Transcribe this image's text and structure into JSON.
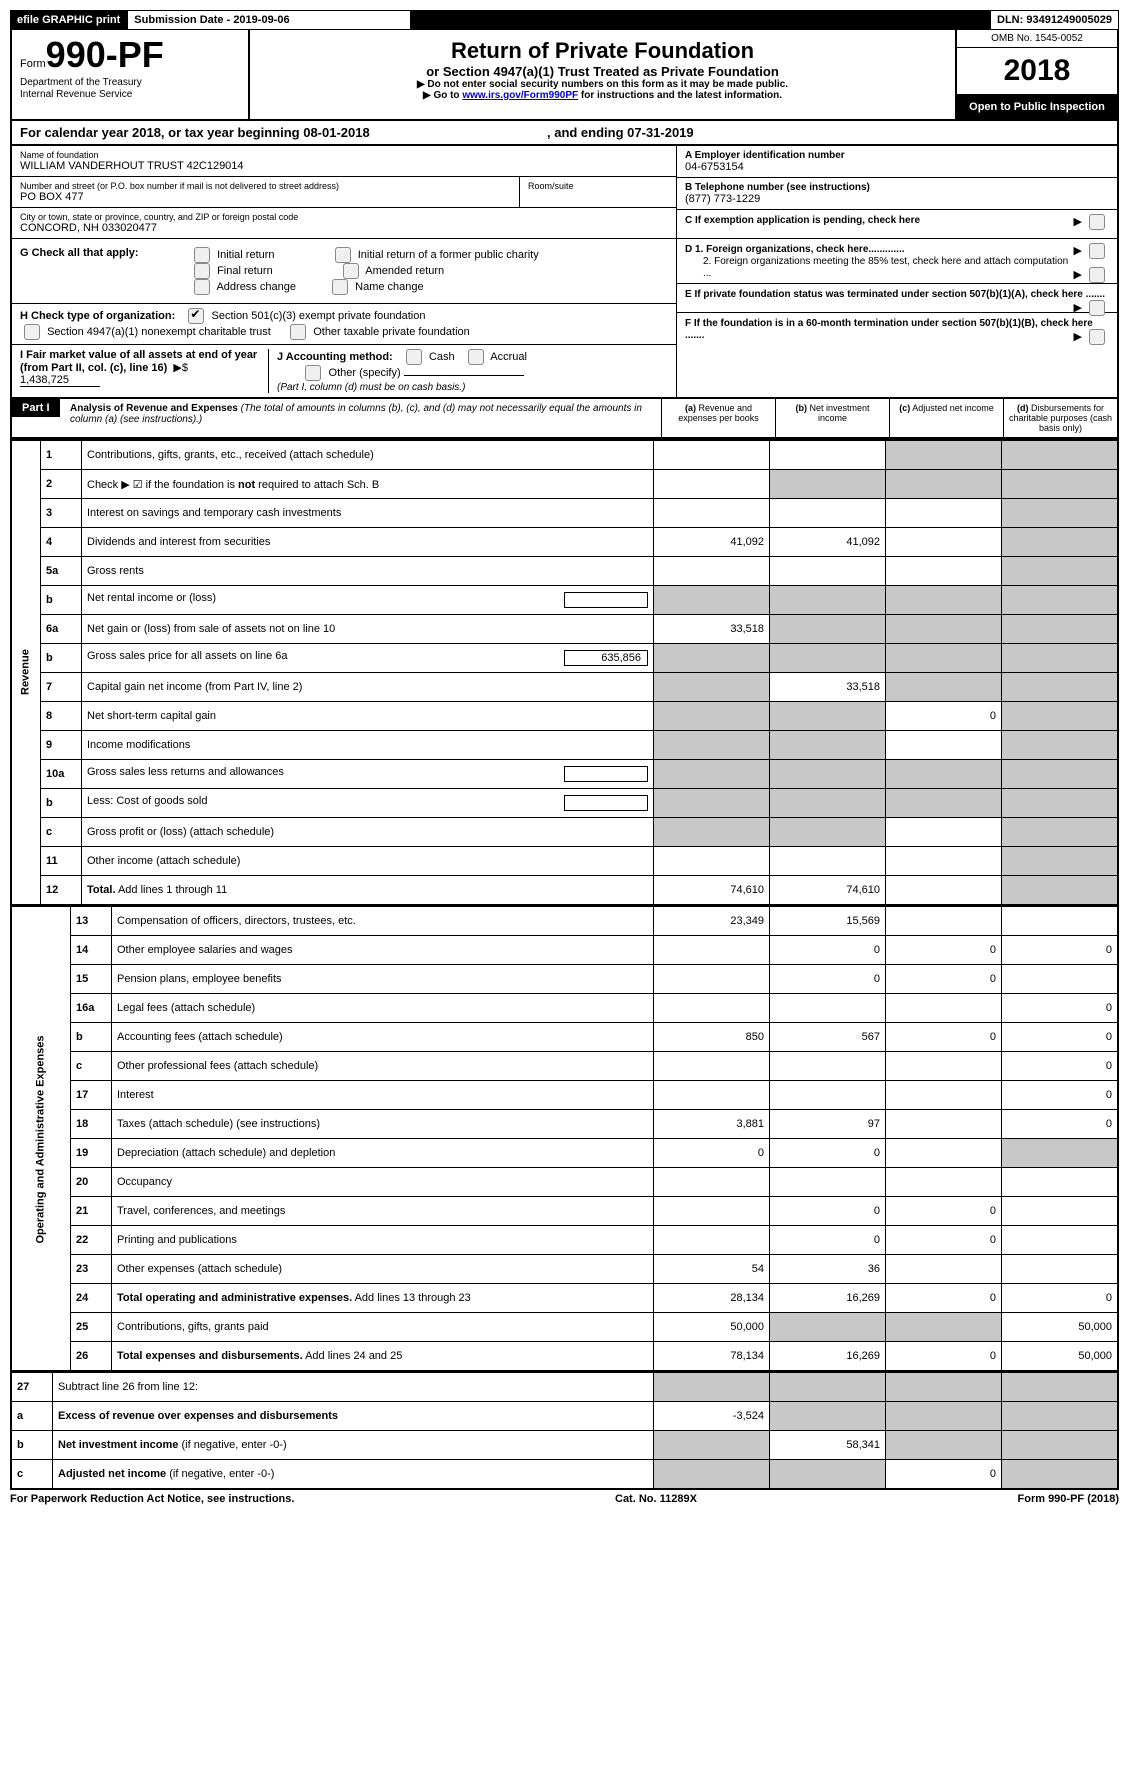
{
  "header": {
    "efile": "efile GRAPHIC print",
    "submission_label": "Submission Date - 2019-09-06",
    "dln": "DLN: 93491249005029",
    "omb": "OMB No. 1545-0052",
    "form_prefix": "Form",
    "form_number": "990-PF",
    "dept": "Department of the Treasury",
    "irs": "Internal Revenue Service",
    "title": "Return of Private Foundation",
    "subtitle": "or Section 4947(a)(1) Trust Treated as Private Foundation",
    "warn": "▶ Do not enter social security numbers on this form as it may be made public.",
    "goto_prefix": "▶ Go to ",
    "goto_link": "www.irs.gov/Form990PF",
    "goto_suffix": " for instructions and the latest information.",
    "year": "2018",
    "public": "Open to Public Inspection"
  },
  "calyear": {
    "text_a": "For calendar year 2018, or tax year beginning 08-01-2018",
    "text_b": ", and ending 07-31-2019"
  },
  "ident": {
    "name_label": "Name of foundation",
    "name": "WILLIAM VANDERHOUT TRUST 42C129014",
    "addr_label": "Number and street (or P.O. box number if mail is not delivered to street address)",
    "addr": "PO BOX 477",
    "room_label": "Room/suite",
    "city_label": "City or town, state or province, country, and ZIP or foreign postal code",
    "city": "CONCORD, NH  033020477",
    "ein_label": "A Employer identification number",
    "ein": "04-6753154",
    "tel_label": "B Telephone number (see instructions)",
    "tel": "(877) 773-1229",
    "c_label": "C  If exemption application is pending, check here",
    "d1": "D 1. Foreign organizations, check here.............",
    "d2": "2. Foreign organizations meeting the 85% test, check here and attach computation ...",
    "e_label": "E  If private foundation status was terminated under section 507(b)(1)(A), check here .......",
    "f_label": "F  If the foundation is in a 60-month termination under section 507(b)(1)(B), check here ......."
  },
  "g": {
    "label": "G Check all that apply:",
    "opts": [
      "Initial return",
      "Initial return of a former public charity",
      "Final return",
      "Amended return",
      "Address change",
      "Name change"
    ]
  },
  "h": {
    "label": "H Check type of organization:",
    "opt1": "Section 501(c)(3) exempt private foundation",
    "opt2": "Section 4947(a)(1) nonexempt charitable trust",
    "opt3": "Other taxable private foundation"
  },
  "i": {
    "label": "I Fair market value of all assets at end of year (from Part II, col. (c), line 16)",
    "value": "1,438,725"
  },
  "j": {
    "label": "J Accounting method:",
    "cash": "Cash",
    "accrual": "Accrual",
    "other": "Other (specify)",
    "note": "(Part I, column (d) must be on cash basis.)"
  },
  "part1": {
    "label": "Part I",
    "title": "Analysis of Revenue and Expenses",
    "note": "(The total of amounts in columns (b), (c), and (d) may not necessarily equal the amounts in column (a) (see instructions).)",
    "col_a": "Revenue and expenses per books",
    "col_b": "Net investment income",
    "col_c": "Adjusted net income",
    "col_d": "Disbursements for charitable purposes (cash basis only)"
  },
  "sections": {
    "revenue": "Revenue",
    "expenses": "Operating and Administrative Expenses"
  },
  "rows": [
    {
      "n": "1",
      "d": "Contributions, gifts, grants, etc., received (attach schedule)",
      "a": "",
      "b": "",
      "c": "g",
      "dcol": "g"
    },
    {
      "n": "2",
      "d": "Check ▶ ☑ if the foundation is <b>not</b> required to attach Sch. B",
      "a": "",
      "b": "g",
      "c": "g",
      "dcol": "g"
    },
    {
      "n": "3",
      "d": "Interest on savings and temporary cash investments",
      "a": "",
      "b": "",
      "c": "",
      "dcol": "g"
    },
    {
      "n": "4",
      "d": "Dividends and interest from securities",
      "a": "41,092",
      "b": "41,092",
      "c": "",
      "dcol": "g"
    },
    {
      "n": "5a",
      "d": "Gross rents",
      "a": "",
      "b": "",
      "c": "",
      "dcol": "g"
    },
    {
      "n": "b",
      "d": "Net rental income or (loss)",
      "a": "g",
      "b": "g",
      "c": "g",
      "dcol": "g",
      "inline": true
    },
    {
      "n": "6a",
      "d": "Net gain or (loss) from sale of assets not on line 10",
      "a": "33,518",
      "b": "g",
      "c": "g",
      "dcol": "g"
    },
    {
      "n": "b",
      "d": "Gross sales price for all assets on line 6a",
      "a": "g",
      "b": "g",
      "c": "g",
      "dcol": "g",
      "inline": true,
      "ival": "635,856"
    },
    {
      "n": "7",
      "d": "Capital gain net income (from Part IV, line 2)",
      "a": "g",
      "b": "33,518",
      "c": "g",
      "dcol": "g"
    },
    {
      "n": "8",
      "d": "Net short-term capital gain",
      "a": "g",
      "b": "g",
      "c": "0",
      "dcol": "g"
    },
    {
      "n": "9",
      "d": "Income modifications",
      "a": "g",
      "b": "g",
      "c": "",
      "dcol": "g"
    },
    {
      "n": "10a",
      "d": "Gross sales less returns and allowances",
      "a": "g",
      "b": "g",
      "c": "g",
      "dcol": "g",
      "inline": true
    },
    {
      "n": "b",
      "d": "Less: Cost of goods sold",
      "a": "g",
      "b": "g",
      "c": "g",
      "dcol": "g",
      "inline": true
    },
    {
      "n": "c",
      "d": "Gross profit or (loss) (attach schedule)",
      "a": "g",
      "b": "g",
      "c": "",
      "dcol": "g"
    },
    {
      "n": "11",
      "d": "Other income (attach schedule)",
      "a": "",
      "b": "",
      "c": "",
      "dcol": "g"
    },
    {
      "n": "12",
      "d": "<b>Total.</b> Add lines 1 through 11",
      "a": "74,610",
      "b": "74,610",
      "c": "",
      "dcol": "g"
    }
  ],
  "exp_rows": [
    {
      "n": "13",
      "d": "Compensation of officers, directors, trustees, etc.",
      "a": "23,349",
      "b": "15,569",
      "c": "",
      "dcol": ""
    },
    {
      "n": "14",
      "d": "Other employee salaries and wages",
      "a": "",
      "b": "0",
      "c": "0",
      "dcol": "0"
    },
    {
      "n": "15",
      "d": "Pension plans, employee benefits",
      "a": "",
      "b": "0",
      "c": "0",
      "dcol": ""
    },
    {
      "n": "16a",
      "d": "Legal fees (attach schedule)",
      "a": "",
      "b": "",
      "c": "",
      "dcol": "0"
    },
    {
      "n": "b",
      "d": "Accounting fees (attach schedule)",
      "a": "850",
      "b": "567",
      "c": "0",
      "dcol": "0"
    },
    {
      "n": "c",
      "d": "Other professional fees (attach schedule)",
      "a": "",
      "b": "",
      "c": "",
      "dcol": "0"
    },
    {
      "n": "17",
      "d": "Interest",
      "a": "",
      "b": "",
      "c": "",
      "dcol": "0"
    },
    {
      "n": "18",
      "d": "Taxes (attach schedule) (see instructions)",
      "a": "3,881",
      "b": "97",
      "c": "",
      "dcol": "0"
    },
    {
      "n": "19",
      "d": "Depreciation (attach schedule) and depletion",
      "a": "0",
      "b": "0",
      "c": "",
      "dcol": "g"
    },
    {
      "n": "20",
      "d": "Occupancy",
      "a": "",
      "b": "",
      "c": "",
      "dcol": ""
    },
    {
      "n": "21",
      "d": "Travel, conferences, and meetings",
      "a": "",
      "b": "0",
      "c": "0",
      "dcol": ""
    },
    {
      "n": "22",
      "d": "Printing and publications",
      "a": "",
      "b": "0",
      "c": "0",
      "dcol": ""
    },
    {
      "n": "23",
      "d": "Other expenses (attach schedule)",
      "a": "54",
      "b": "36",
      "c": "",
      "dcol": ""
    },
    {
      "n": "24",
      "d": "<b>Total operating and administrative expenses.</b> Add lines 13 through 23",
      "a": "28,134",
      "b": "16,269",
      "c": "0",
      "dcol": "0"
    },
    {
      "n": "25",
      "d": "Contributions, gifts, grants paid",
      "a": "50,000",
      "b": "g",
      "c": "g",
      "dcol": "50,000"
    },
    {
      "n": "26",
      "d": "<b>Total expenses and disbursements.</b> Add lines 24 and 25",
      "a": "78,134",
      "b": "16,269",
      "c": "0",
      "dcol": "50,000"
    }
  ],
  "final_rows": [
    {
      "n": "27",
      "d": "Subtract line 26 from line 12:",
      "a": "g",
      "b": "g",
      "c": "g",
      "dcol": "g"
    },
    {
      "n": "a",
      "d": "<b>Excess of revenue over expenses and disbursements</b>",
      "a": "-3,524",
      "b": "g",
      "c": "g",
      "dcol": "g"
    },
    {
      "n": "b",
      "d": "<b>Net investment income</b> (if negative, enter -0-)",
      "a": "g",
      "b": "58,341",
      "c": "g",
      "dcol": "g"
    },
    {
      "n": "c",
      "d": "<b>Adjusted net income</b> (if negative, enter -0-)",
      "a": "g",
      "b": "g",
      "c": "0",
      "dcol": "g"
    }
  ],
  "footer": {
    "left": "For Paperwork Reduction Act Notice, see instructions.",
    "center": "Cat. No. 11289X",
    "right": "Form 990-PF (2018)"
  }
}
